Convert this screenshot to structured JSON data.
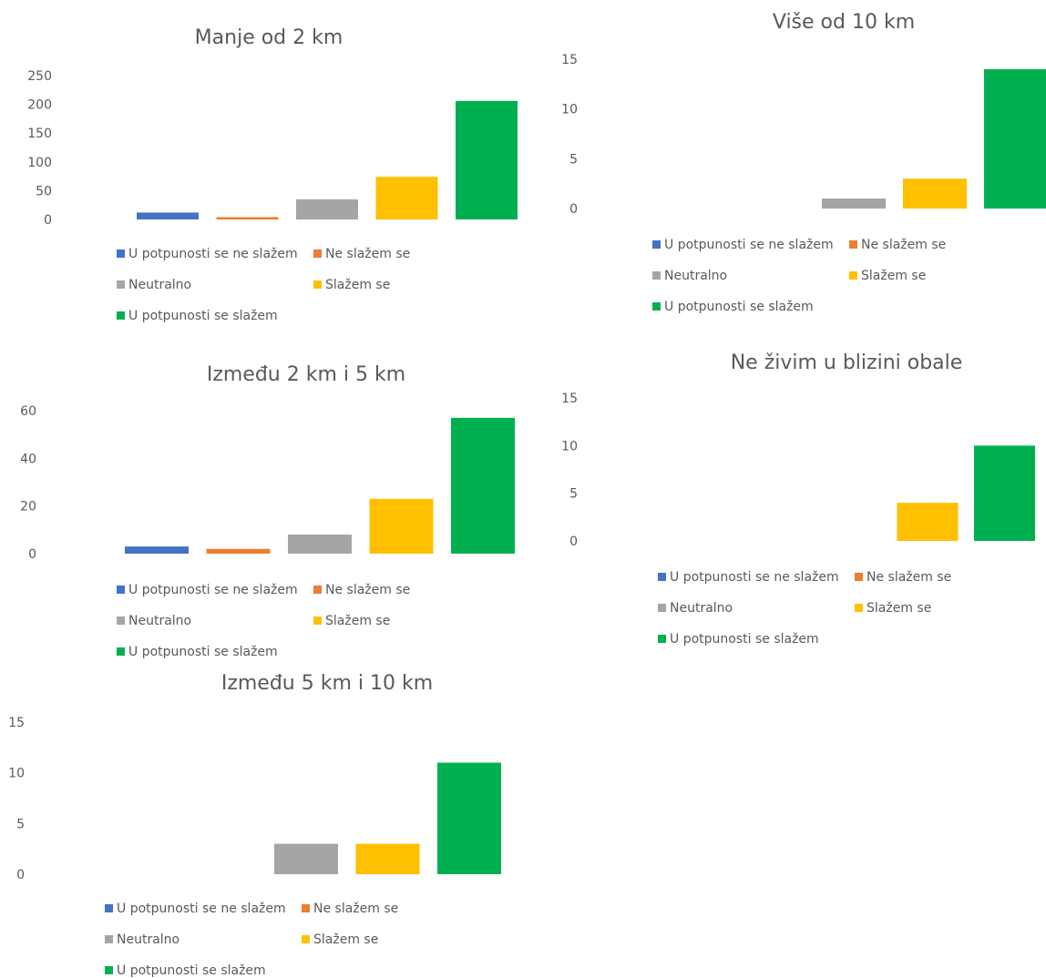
{
  "colors": {
    "U potpunosti se ne slažem": "#4472C4",
    "Ne slažem se": "#ED7D31",
    "Neutralno": "#A5A5A5",
    "Slažem se": "#FFC000",
    "U potpunosti se slažem": "#00B050"
  },
  "chart_data": [
    {
      "type": "bar",
      "title": "Manje od 2 km",
      "categories": [
        "U potpunosti se ne slažem",
        "Ne slažem se",
        "Neutralno",
        "Slažem se",
        "U potpunosti se slažem"
      ],
      "values": [
        12,
        4,
        35,
        74,
        206
      ],
      "y_ticks": [
        "0",
        "50",
        "100",
        "150",
        "200",
        "250"
      ],
      "ylim": [
        0,
        250
      ],
      "legend": [
        "U potpunosti se ne slažem",
        "Ne slažem se",
        "Neutralno",
        "Slažem se",
        "U potpunosti se slažem"
      ],
      "legend_position": "bottom",
      "grid": false
    },
    {
      "type": "bar",
      "title": "Između 2 km i 5 km",
      "categories": [
        "U potpunosti se ne slažem",
        "Ne slažem se",
        "Neutralno",
        "Slažem se",
        "U potpunosti se slažem"
      ],
      "values": [
        3,
        2,
        8,
        23,
        57
      ],
      "y_ticks": [
        "0",
        "20",
        "40",
        "60"
      ],
      "ylim": [
        0,
        60
      ],
      "legend": [
        "U potpunosti se ne slažem",
        "Ne slažem se",
        "Neutralno",
        "Slažem se",
        "U potpunosti se slažem"
      ],
      "legend_position": "bottom",
      "grid": false
    },
    {
      "type": "bar",
      "title": "Između 5 km i 10 km",
      "categories": [
        "U potpunosti se ne slažem",
        "Ne slažem se",
        "Neutralno",
        "Slažem se",
        "U potpunosti se slažem"
      ],
      "values": [
        0,
        0,
        3,
        3,
        11
      ],
      "y_ticks": [
        "0",
        "5",
        "10",
        "15"
      ],
      "ylim": [
        0,
        15
      ],
      "legend": [
        "U potpunosti se ne slažem",
        "Ne slažem se",
        "Neutralno",
        "Slažem se",
        "U potpunosti se slažem"
      ],
      "legend_position": "bottom",
      "grid": false
    },
    {
      "type": "bar",
      "title": "Više od 10 km",
      "categories": [
        "U potpunosti se ne slažem",
        "Ne slažem se",
        "Neutralno",
        "Slažem se",
        "U potpunosti se slažem"
      ],
      "values": [
        0,
        0,
        1,
        3,
        14
      ],
      "y_ticks": [
        "0",
        "5",
        "10",
        "15"
      ],
      "ylim": [
        0,
        15
      ],
      "legend": [
        "U potpunosti se ne slažem",
        "Ne slažem se",
        "Neutralno",
        "Slažem se",
        "U potpunosti se slažem"
      ],
      "legend_position": "bottom",
      "grid": false
    },
    {
      "type": "bar",
      "title": "Ne živim u blizini obale",
      "categories": [
        "U potpunosti se ne slažem",
        "Ne slažem se",
        "Neutralno",
        "Slažem se",
        "U potpunosti se slažem"
      ],
      "values": [
        0,
        0,
        0,
        4,
        10
      ],
      "y_ticks": [
        "0",
        "5",
        "10",
        "15"
      ],
      "ylim": [
        0,
        15
      ],
      "legend": [
        "U potpunosti se ne slažem",
        "Ne slažem se",
        "Neutralno",
        "Slažem se",
        "U potpunosti se slažem"
      ],
      "legend_position": "bottom",
      "grid": false
    }
  ]
}
